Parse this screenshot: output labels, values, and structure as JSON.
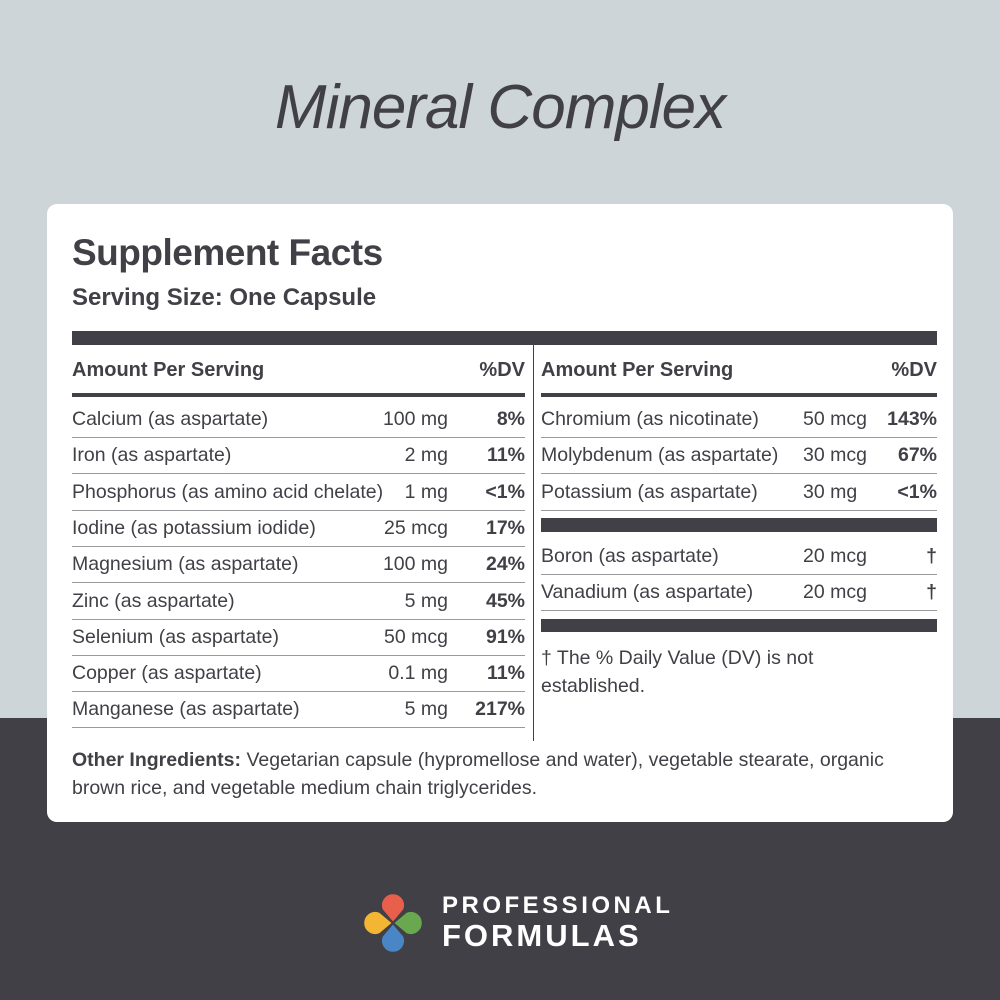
{
  "title": "Mineral Complex",
  "panel": {
    "heading": "Supplement Facts",
    "serving_size": "Serving Size: One Capsule",
    "col_header": "Amount Per Serving",
    "dv_header": "%DV",
    "left_rows": [
      {
        "name": "Calcium (as aspartate)",
        "amount": "100 mg",
        "dv": "8%"
      },
      {
        "name": "Iron (as aspartate)",
        "amount": "2 mg",
        "dv": "11%"
      },
      {
        "name": "Phosphorus (as amino acid chelate)",
        "amount": "1 mg",
        "dv": "<1%"
      },
      {
        "name": "Iodine (as potassium iodide)",
        "amount": "25 mcg",
        "dv": "17%"
      },
      {
        "name": "Magnesium (as aspartate)",
        "amount": "100 mg",
        "dv": "24%"
      },
      {
        "name": "Zinc (as aspartate)",
        "amount": "5 mg",
        "dv": "45%"
      },
      {
        "name": "Selenium (as aspartate)",
        "amount": "50 mcg",
        "dv": "91%"
      },
      {
        "name": "Copper (as aspartate)",
        "amount": "0.1 mg",
        "dv": "11%"
      },
      {
        "name": "Manganese (as aspartate)",
        "amount": "5 mg",
        "dv": "217%"
      }
    ],
    "right_rows": [
      {
        "name": "Chromium (as nicotinate)",
        "amount": "50 mcg",
        "dv": "143%"
      },
      {
        "name": "Molybdenum (as aspartate)",
        "amount": "30 mcg",
        "dv": "67%"
      },
      {
        "name": "Potassium (as aspartate)",
        "amount": "30 mg",
        "dv": "<1%"
      }
    ],
    "right_rows_2": [
      {
        "name": "Boron (as aspartate)",
        "amount": "20 mcg",
        "dv": "†"
      },
      {
        "name": "Vanadium (as aspartate)",
        "amount": "20 mcg",
        "dv": "†"
      }
    ],
    "footnote": "† The % Daily Value (DV) is not established.",
    "other_label": "Other Ingredients:",
    "other_text": " Vegetarian capsule (hypromellose and water), vegetable stearate, organic brown rice, and vegetable medium chain triglycerides."
  },
  "brand": {
    "line1": "PROFESSIONAL",
    "line2": "FORMULAS",
    "logo_colors": [
      "#e8604c",
      "#6aa84f",
      "#4a86c5",
      "#f2b632"
    ]
  },
  "colors": {
    "top_bg": "#cdd5d8",
    "bottom_bg": "#414046",
    "text": "#414046"
  }
}
